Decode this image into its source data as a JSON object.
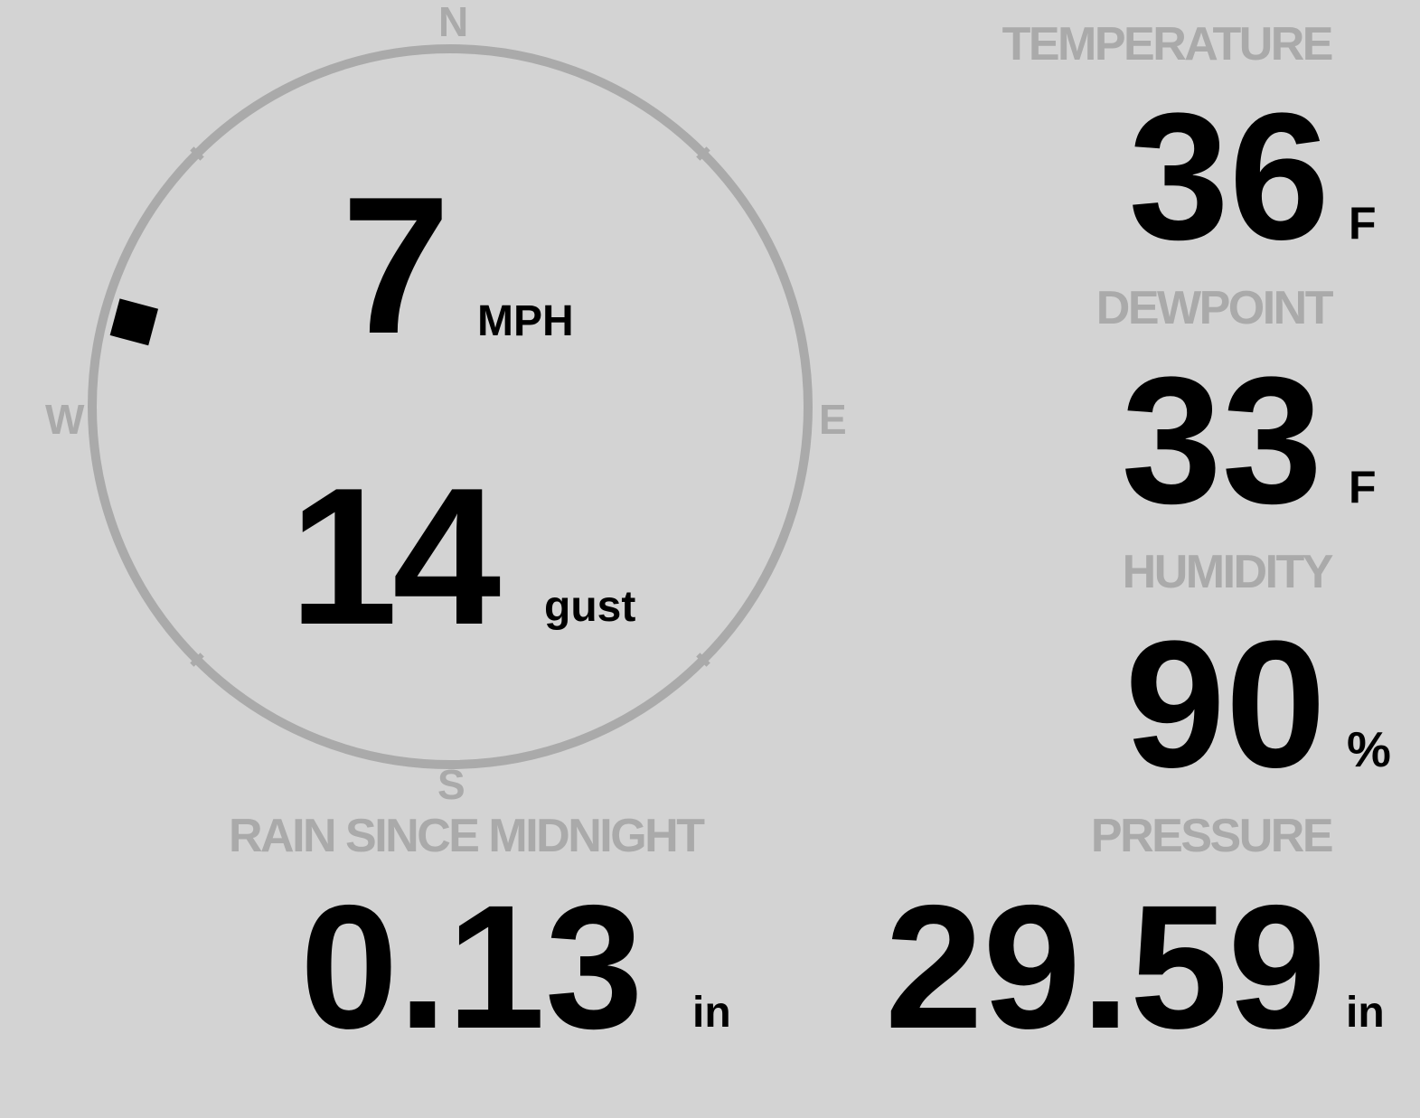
{
  "wind": {
    "speed": "7",
    "speed_unit": "MPH",
    "gust": "14",
    "gust_unit": "gust",
    "direction_degrees": 285,
    "compass": {
      "n": "N",
      "e": "E",
      "s": "S",
      "w": "W"
    }
  },
  "temperature": {
    "label": "TEMPERATURE",
    "value": "36",
    "unit": "F"
  },
  "dewpoint": {
    "label": "DEWPOINT",
    "value": "33",
    "unit": "F"
  },
  "humidity": {
    "label": "HUMIDITY",
    "value": "90",
    "unit": "%"
  },
  "rain": {
    "label": "RAIN SINCE MIDNIGHT",
    "value": "0.13",
    "unit": "in"
  },
  "pressure": {
    "label": "PRESSURE",
    "value": "29.59",
    "unit": "in"
  },
  "colors": {
    "background": "#d3d3d3",
    "label": "#aaaaaa",
    "value": "#000000",
    "compass_ring": "#aaaaaa"
  }
}
